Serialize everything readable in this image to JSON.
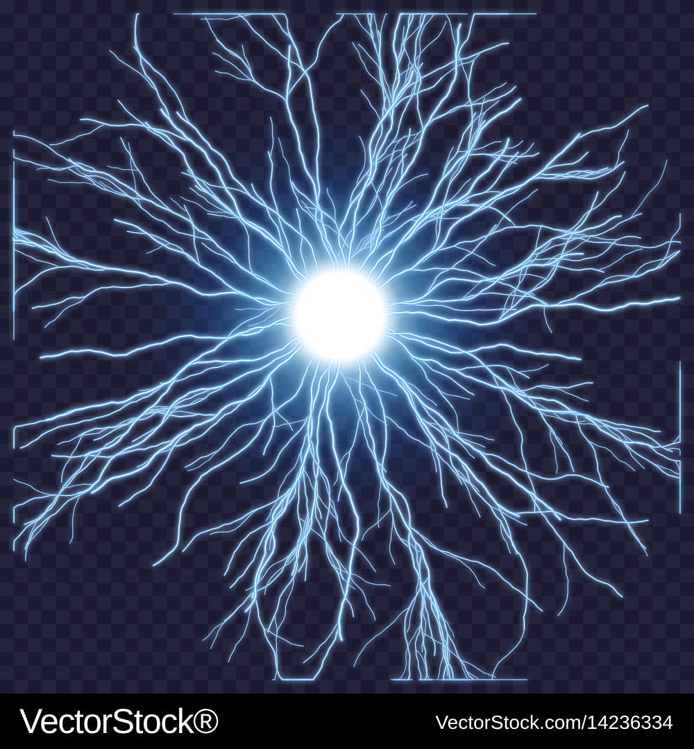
{
  "footer": {
    "brand": "VectorStock®",
    "image_ref": "VectorStock.com/14236334"
  },
  "colors": {
    "background": "#24233c",
    "checker": "#1b1a30",
    "glow": "#2fa9ff",
    "bolt_core": "#e6f6ff",
    "footer_bg": "#000000",
    "footer_text": "#ffffff"
  },
  "icons": {
    "artwork": "lightning-plasma-ball"
  }
}
